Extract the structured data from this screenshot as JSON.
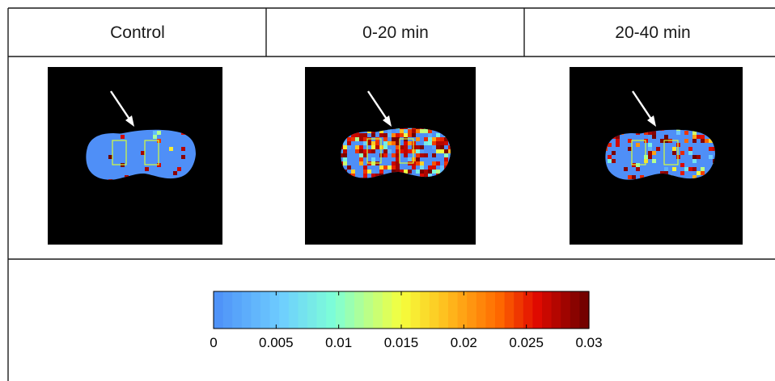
{
  "columns": [
    {
      "label": "Control",
      "density": 0.05,
      "seed": 11
    },
    {
      "label": "0-20 min",
      "density": 0.55,
      "seed": 23
    },
    {
      "label": "20-40 min",
      "density": 0.22,
      "seed": 37
    }
  ],
  "colorbar": {
    "min": 0,
    "max": 0.03,
    "steps": 40,
    "ticks": [
      "0",
      "0.005",
      "0.01",
      "0.015",
      "0.02",
      "0.025",
      "0.03"
    ],
    "tick_values": [
      0,
      0.005,
      0.01,
      0.015,
      0.02,
      0.025,
      0.03
    ]
  },
  "colors": {
    "background": "#000000",
    "tissue": "#4f8ff7",
    "roi_box": "#d5ff3a",
    "arrow": "#ffffff",
    "grid_lines": "#1c1c1c"
  },
  "icons": {
    "arrow": "arrow-down-right-icon"
  }
}
